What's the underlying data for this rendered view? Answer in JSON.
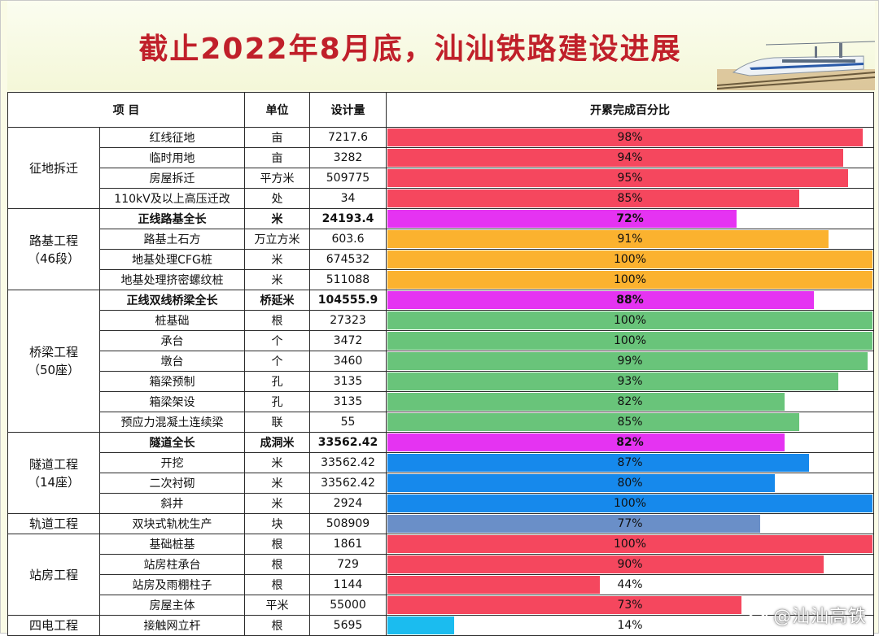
{
  "title": "截止2022年8月底，汕汕铁路建设进展",
  "headers": {
    "item": "项    目",
    "unit": "单位",
    "design": "设计量",
    "pct": "开累完成百分比"
  },
  "colors": {
    "red": "#f5475e",
    "orange": "#fbb22f",
    "magenta": "#e533f2",
    "green": "#69c47a",
    "blue": "#1689ec",
    "steel": "#6a8fc8",
    "cyan": "#1bbcef"
  },
  "groups": [
    {
      "name": "征地拆迁",
      "rows": [
        {
          "item": "红线征地",
          "unit": "亩",
          "design": "7217.6",
          "pct": "98%",
          "value": 98,
          "color": "red",
          "bold": false
        },
        {
          "item": "临时用地",
          "unit": "亩",
          "design": "3282",
          "pct": "94%",
          "value": 94,
          "color": "red",
          "bold": false
        },
        {
          "item": "房屋拆迁",
          "unit": "平方米",
          "design": "509775",
          "pct": "95%",
          "value": 95,
          "color": "red",
          "bold": false
        },
        {
          "item": "110kV及以上高压迁改",
          "unit": "处",
          "design": "34",
          "pct": "85%",
          "value": 85,
          "color": "red",
          "bold": false
        }
      ]
    },
    {
      "name": "路基工程\n（46段）",
      "rows": [
        {
          "item": "正线路基全长",
          "unit": "米",
          "design": "24193.4",
          "pct": "72%",
          "value": 72,
          "color": "magenta",
          "bold": true
        },
        {
          "item": "路基土石方",
          "unit": "万立方米",
          "design": "603.6",
          "pct": "91%",
          "value": 91,
          "color": "orange",
          "bold": false
        },
        {
          "item": "地基处理CFG桩",
          "unit": "米",
          "design": "674532",
          "pct": "100%",
          "value": 100,
          "color": "orange",
          "bold": false
        },
        {
          "item": "地基处理挤密螺纹桩",
          "unit": "米",
          "design": "511088",
          "pct": "100%",
          "value": 100,
          "color": "orange",
          "bold": false
        }
      ]
    },
    {
      "name": "桥梁工程\n（50座）",
      "rows": [
        {
          "item": "正线双线桥梁全长",
          "unit": "桥延米",
          "design": "104555.9",
          "pct": "88%",
          "value": 88,
          "color": "magenta",
          "bold": true
        },
        {
          "item": "桩基础",
          "unit": "根",
          "design": "27323",
          "pct": "100%",
          "value": 100,
          "color": "green",
          "bold": false
        },
        {
          "item": "承台",
          "unit": "个",
          "design": "3472",
          "pct": "100%",
          "value": 100,
          "color": "green",
          "bold": false
        },
        {
          "item": "墩台",
          "unit": "个",
          "design": "3460",
          "pct": "99%",
          "value": 99,
          "color": "green",
          "bold": false
        },
        {
          "item": "箱梁预制",
          "unit": "孔",
          "design": "3135",
          "pct": "93%",
          "value": 93,
          "color": "green",
          "bold": false
        },
        {
          "item": "箱梁架设",
          "unit": "孔",
          "design": "3135",
          "pct": "82%",
          "value": 82,
          "color": "green",
          "bold": false
        },
        {
          "item": "预应力混凝土连续梁",
          "unit": "联",
          "design": "55",
          "pct": "85%",
          "value": 85,
          "color": "green",
          "bold": false
        }
      ]
    },
    {
      "name": "隧道工程\n（14座）",
      "rows": [
        {
          "item": "隧道全长",
          "unit": "成洞米",
          "design": "33562.42",
          "pct": "82%",
          "value": 82,
          "color": "magenta",
          "bold": true
        },
        {
          "item": "开挖",
          "unit": "米",
          "design": "33562.42",
          "pct": "87%",
          "value": 87,
          "color": "blue",
          "bold": false
        },
        {
          "item": "二次衬砌",
          "unit": "米",
          "design": "33562.42",
          "pct": "80%",
          "value": 80,
          "color": "blue",
          "bold": false
        },
        {
          "item": "斜井",
          "unit": "米",
          "design": "2924",
          "pct": "100%",
          "value": 100,
          "color": "blue",
          "bold": false
        }
      ]
    },
    {
      "name": "轨道工程",
      "rows": [
        {
          "item": "双块式轨枕生产",
          "unit": "块",
          "design": "508909",
          "pct": "77%",
          "value": 77,
          "color": "steel",
          "bold": false
        }
      ]
    },
    {
      "name": "站房工程",
      "rows": [
        {
          "item": "基础桩基",
          "unit": "根",
          "design": "1861",
          "pct": "100%",
          "value": 100,
          "color": "red",
          "bold": false
        },
        {
          "item": "站房柱承台",
          "unit": "根",
          "design": "729",
          "pct": "90%",
          "value": 90,
          "color": "red",
          "bold": false
        },
        {
          "item": "站房及雨棚柱子",
          "unit": "根",
          "design": "1144",
          "pct": "44%",
          "value": 44,
          "color": "red",
          "bold": false
        },
        {
          "item": "房屋主体",
          "unit": "平米",
          "design": "55000",
          "pct": "73%",
          "value": 73,
          "color": "red",
          "bold": false
        }
      ]
    },
    {
      "name": "四电工程",
      "rows": [
        {
          "item": "接触网立杆",
          "unit": "根",
          "design": "5695",
          "pct": "14%",
          "value": 14,
          "color": "cyan",
          "bold": false
        }
      ]
    }
  ],
  "watermark": "@汕汕高铁"
}
